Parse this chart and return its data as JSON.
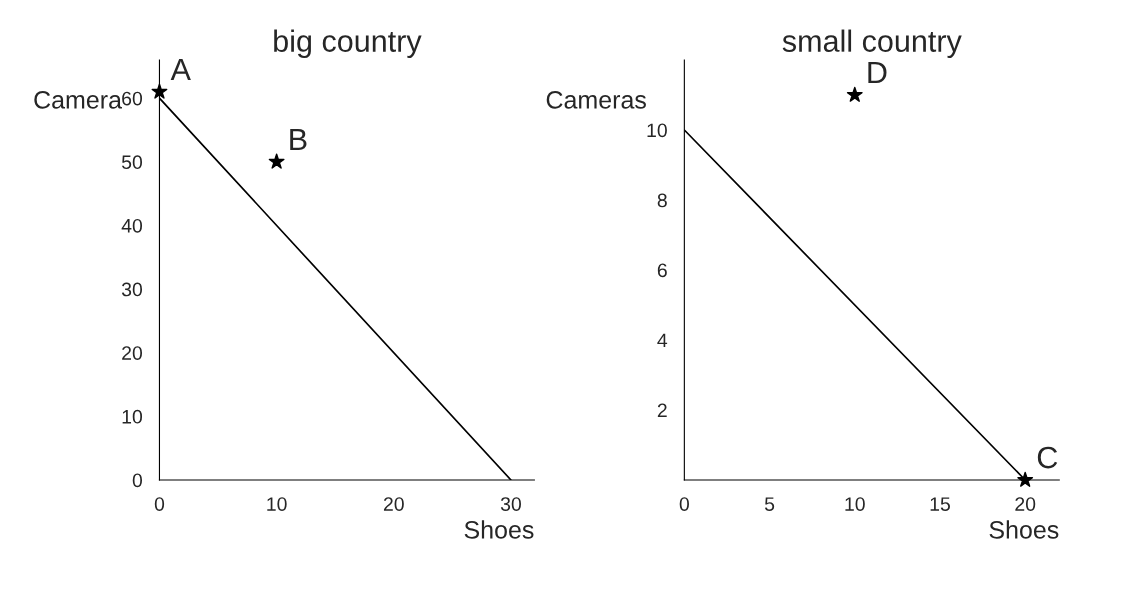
{
  "chart_data": [
    {
      "type": "line",
      "title": "big country",
      "xlabel": "Shoes",
      "ylabel": "Camera",
      "xlim": [
        0,
        32
      ],
      "ylim": [
        0,
        66
      ],
      "xticks": [
        0,
        10,
        20,
        30
      ],
      "yticks": [
        0,
        10,
        20,
        30,
        40,
        50,
        60
      ],
      "grid": false,
      "legend": false,
      "marker": "none",
      "line_style": "solid",
      "series": [
        {
          "color": "#000000",
          "x": [
            0,
            30
          ],
          "values": [
            60,
            0
          ]
        },
        {
          "type": "scatter",
          "name": "A",
          "color": "#000000",
          "x": [
            0
          ],
          "values": [
            61
          ],
          "marker": "star"
        },
        {
          "type": "scatter",
          "name": "B",
          "color": "#000000",
          "x": [
            10
          ],
          "values": [
            50
          ],
          "marker": "star"
        }
      ]
    },
    {
      "type": "line",
      "title": "small country",
      "xlabel": "Shoes",
      "ylabel": "Cameras",
      "xlim": [
        0,
        22
      ],
      "ylim": [
        0,
        12
      ],
      "xticks": [
        0,
        5,
        10,
        15,
        20
      ],
      "yticks": [
        2,
        4,
        6,
        8,
        10
      ],
      "grid": false,
      "legend": false,
      "marker": "none",
      "line_style": "solid",
      "series": [
        {
          "color": "#000000",
          "x": [
            0,
            20
          ],
          "values": [
            10,
            0
          ]
        },
        {
          "type": "scatter",
          "name": "D",
          "color": "#000000",
          "x": [
            10
          ],
          "values": [
            11
          ],
          "marker": "star"
        },
        {
          "type": "scatter",
          "name": "C",
          "color": "#000000",
          "x": [
            20
          ],
          "values": [
            0
          ],
          "marker": "star"
        }
      ]
    }
  ]
}
